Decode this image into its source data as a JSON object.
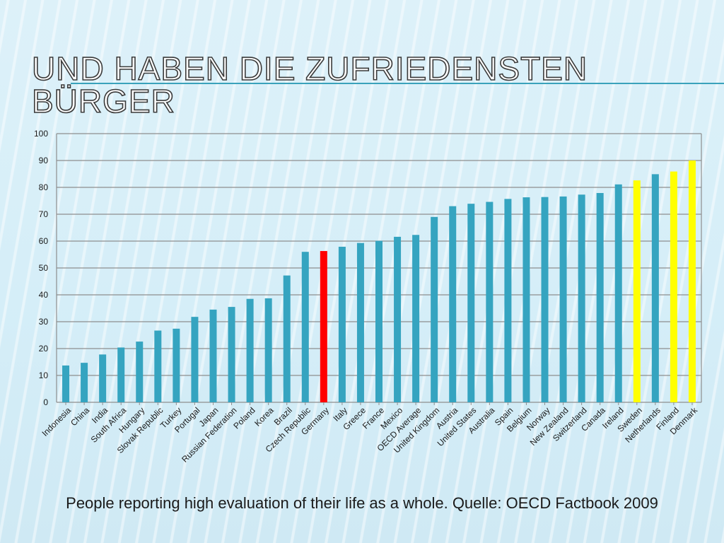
{
  "slide": {
    "title": "Und haben die zufriedensten Bürger",
    "caption": "People reporting high evaluation of their life as a whole. Quelle: OECD Factbook 2009"
  },
  "colors": {
    "default_bar": "#35a4c0",
    "highlight_red": "#ff0000",
    "highlight_yellow": "#ffff00",
    "gridline": "#8e8e8e",
    "axis_text": "#1a1a1a"
  },
  "chart_data": {
    "type": "bar",
    "title": "",
    "xlabel": "",
    "ylabel": "",
    "ylim": [
      0,
      100
    ],
    "yticks": [
      0,
      10,
      20,
      30,
      40,
      50,
      60,
      70,
      80,
      90,
      100
    ],
    "grid": true,
    "categories": [
      "Indonesia",
      "China",
      "India",
      "South Africa",
      "Hungary",
      "Slovak Republic",
      "Turkey",
      "Portugal",
      "Japan",
      "Russian Federation",
      "Poland",
      "Korea",
      "Brazil",
      "Czech Republic",
      "Germany",
      "Italy",
      "Greece",
      "France",
      "Mexico",
      "OECD Average",
      "United Kingdom",
      "Austria",
      "United States",
      "Australia",
      "Spain",
      "Belgium",
      "Norway",
      "New Zealand",
      "Switzerland",
      "Canada",
      "Ireland",
      "Sweden",
      "Netherlands",
      "Finland",
      "Denmark"
    ],
    "values": [
      13.7,
      14.7,
      17.8,
      20.4,
      22.6,
      26.7,
      27.4,
      31.8,
      34.5,
      35.5,
      38.5,
      38.7,
      47.2,
      56.0,
      56.3,
      57.9,
      59.3,
      60.1,
      61.6,
      62.3,
      69.0,
      73.0,
      73.9,
      74.6,
      75.7,
      76.3,
      76.4,
      76.6,
      77.3,
      77.9,
      81.1,
      82.6,
      84.9,
      85.9,
      90.0
    ],
    "bar_colors": [
      "default",
      "default",
      "default",
      "default",
      "default",
      "default",
      "default",
      "default",
      "default",
      "default",
      "default",
      "default",
      "default",
      "default",
      "red",
      "default",
      "default",
      "default",
      "default",
      "default",
      "default",
      "default",
      "default",
      "default",
      "default",
      "default",
      "default",
      "default",
      "default",
      "default",
      "default",
      "yellow",
      "default",
      "yellow",
      "yellow"
    ]
  }
}
